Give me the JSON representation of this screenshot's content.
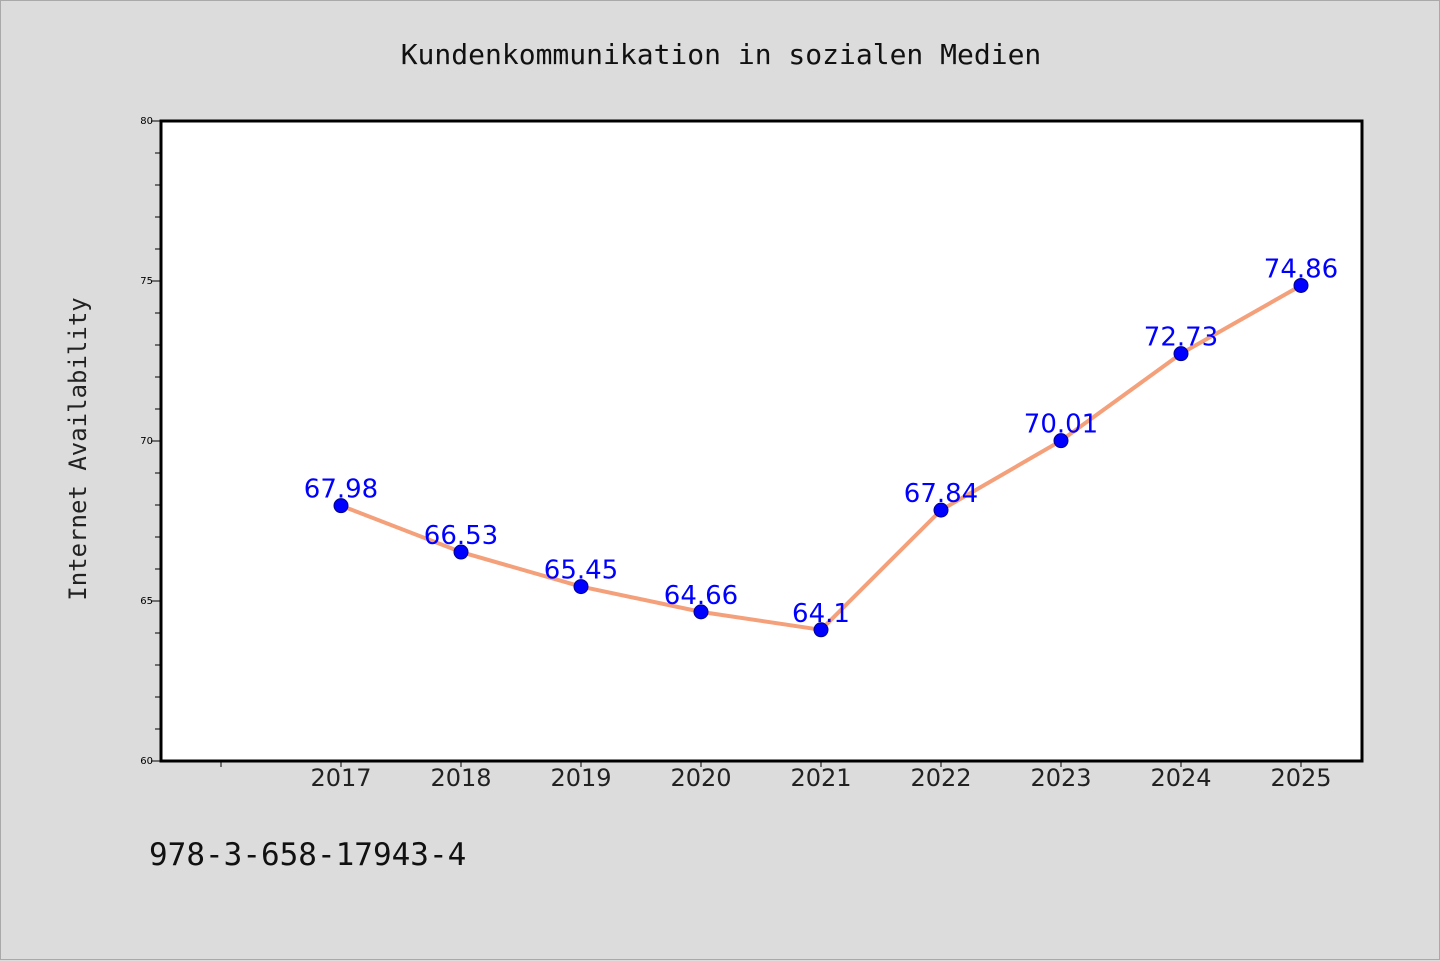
{
  "chart_data": {
    "type": "line",
    "title": "Kundenkommunikation in sozialen Medien",
    "xlabel": "",
    "ylabel": "Internet Availability",
    "categories": [
      "2017",
      "2018",
      "2019",
      "2020",
      "2021",
      "2022",
      "2023",
      "2024",
      "2025"
    ],
    "series": [
      {
        "values": [
          67.98,
          66.53,
          65.45,
          64.66,
          64.1,
          67.84,
          70.01,
          72.73,
          74.86
        ],
        "labels": [
          "67.98",
          "66.53",
          "65.45",
          "64.66",
          "64.1",
          "67.84",
          "70.01",
          "72.73",
          "74.86"
        ]
      }
    ],
    "ylim": [
      60,
      80
    ],
    "yticks": [
      "60",
      "65",
      "70",
      "75",
      "80"
    ],
    "grid": false,
    "legend": "none",
    "colors": {
      "line": "#f4a07a",
      "marker": "#0000ff",
      "data_label": "#0000ff",
      "background": "#dcdcdc",
      "plot_background": "#ffffff"
    }
  },
  "footer": {
    "isbn": "978-3-658-17943-4"
  }
}
